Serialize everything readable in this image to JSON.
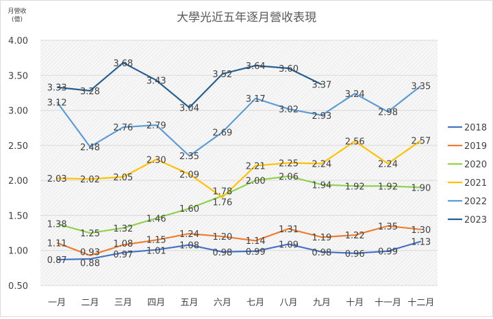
{
  "chart_data": {
    "type": "line",
    "title": "大學光近五年逐月營收表現",
    "ylabel_line1": "月營收",
    "ylabel_line2": "(億)",
    "xlabel": "",
    "categories": [
      "一月",
      "二月",
      "三月",
      "四月",
      "五月",
      "六月",
      "七月",
      "八月",
      "九月",
      "十月",
      "十一月",
      "十二月"
    ],
    "ylim": [
      0.5,
      4.0
    ],
    "yticks": [
      "0.50",
      "1.00",
      "1.50",
      "2.00",
      "2.50",
      "3.00",
      "3.50",
      "4.00"
    ],
    "grid": true,
    "legend_position": "right",
    "series": [
      {
        "name": "2018",
        "color": "#4472c4",
        "values": [
          0.87,
          0.88,
          0.97,
          1.01,
          1.08,
          0.98,
          0.99,
          1.09,
          0.98,
          0.96,
          0.99,
          1.13
        ]
      },
      {
        "name": "2019",
        "color": "#ed7d31",
        "values": [
          1.11,
          0.93,
          1.08,
          1.15,
          1.24,
          1.2,
          1.14,
          1.31,
          1.19,
          1.22,
          1.35,
          1.3
        ]
      },
      {
        "name": "2020",
        "color": "#8fd14f",
        "values": [
          1.38,
          1.25,
          1.32,
          1.46,
          1.6,
          1.78,
          2.0,
          2.06,
          1.94,
          1.92,
          1.92,
          1.9
        ]
      },
      {
        "name": "2021",
        "color": "#ffc000",
        "values": [
          2.03,
          2.02,
          2.05,
          2.3,
          2.09,
          1.76,
          2.21,
          2.25,
          2.24,
          2.56,
          2.24,
          2.57
        ]
      },
      {
        "name": "2022",
        "color": "#5b9bd5",
        "values": [
          3.12,
          2.48,
          2.76,
          2.79,
          2.35,
          2.69,
          3.17,
          3.02,
          2.93,
          3.24,
          2.98,
          3.35
        ]
      },
      {
        "name": "2023",
        "color": "#255e91",
        "values": [
          3.33,
          3.28,
          3.68,
          3.43,
          3.04,
          3.52,
          3.64,
          3.6,
          3.37,
          null,
          null,
          null
        ]
      }
    ]
  }
}
